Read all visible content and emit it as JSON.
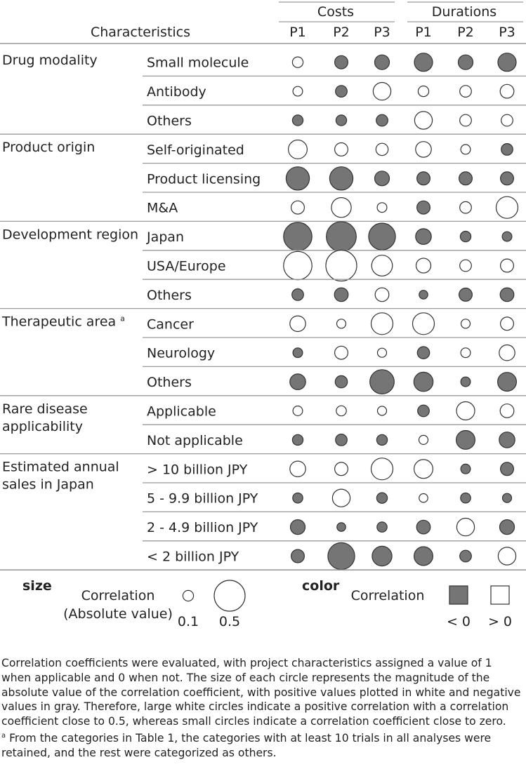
{
  "chart_data": {
    "type": "heatmap",
    "header": {
      "characteristics": "Characteristics",
      "costs": "Costs",
      "durations": "Durations",
      "columns": [
        "P1",
        "P2",
        "P3",
        "P1",
        "P2",
        "P3"
      ]
    },
    "groups": [
      {
        "label": "Drug modality",
        "label_lines": [
          "Drug modality"
        ],
        "rows": [
          {
            "label": "Small molecule",
            "values": [
              0.1,
              -0.15,
              -0.18,
              -0.25,
              -0.18,
              -0.25
            ]
          },
          {
            "label": "Antibody",
            "values": [
              0.08,
              -0.12,
              0.24,
              0.1,
              0.12,
              0.16
            ]
          },
          {
            "label": "Others",
            "values": [
              -0.1,
              -0.1,
              -0.12,
              0.24,
              0.12,
              0.12
            ]
          }
        ]
      },
      {
        "label": "Product origin",
        "label_lines": [
          "Product origin"
        ],
        "rows": [
          {
            "label": "Self-originated",
            "values": [
              0.26,
              0.15,
              0.13,
              0.2,
              0.08,
              -0.12
            ]
          },
          {
            "label": "Product licensing",
            "values": [
              -0.35,
              -0.35,
              -0.18,
              -0.15,
              -0.15,
              -0.15
            ]
          },
          {
            "label": "M&A",
            "values": [
              0.15,
              0.28,
              0.08,
              -0.15,
              0.12,
              0.32
            ]
          }
        ]
      },
      {
        "label": "Development region",
        "label_lines": [
          "Development region"
        ],
        "rows": [
          {
            "label": "Japan",
            "values": [
              -0.45,
              -0.48,
              -0.42,
              -0.2,
              -0.1,
              -0.08
            ]
          },
          {
            "label": "USA/Europe",
            "values": [
              0.45,
              0.5,
              0.3,
              0.18,
              0.12,
              0.15
            ]
          },
          {
            "label": "Others",
            "values": [
              -0.12,
              -0.16,
              0.16,
              -0.06,
              -0.15,
              -0.16
            ]
          }
        ]
      },
      {
        "label": "Therapeutic area",
        "label_lines": [
          "Therapeutic area"
        ],
        "footnote": "a",
        "rows": [
          {
            "label": "Cancer",
            "values": [
              0.2,
              0.07,
              0.32,
              0.32,
              0.07,
              0.15
            ]
          },
          {
            "label": "Neurology",
            "values": [
              -0.08,
              0.15,
              0.07,
              -0.13,
              0.08,
              0.2
            ]
          },
          {
            "label": "Others",
            "values": [
              -0.2,
              -0.13,
              -0.37,
              -0.27,
              -0.08,
              -0.26
            ]
          }
        ]
      },
      {
        "label": "Rare disease applicability",
        "label_lines": [
          "Rare disease",
          "applicability"
        ],
        "rows": [
          {
            "label": "Applicable",
            "values": [
              0.08,
              0.09,
              0.07,
              -0.12,
              0.25,
              0.16
            ]
          },
          {
            "label": "Not applicable",
            "values": [
              -0.1,
              -0.12,
              -0.1,
              0.07,
              -0.26,
              -0.2
            ]
          }
        ]
      },
      {
        "label": "Estimated annual sales in Japan",
        "label_lines": [
          "Estimated annual",
          "sales in Japan"
        ],
        "rows": [
          {
            "label": "> 10 billion JPY",
            "values": [
              0.2,
              0.15,
              0.32,
              0.26,
              -0.08,
              -0.15
            ]
          },
          {
            "label": "5 - 9.9 billion JPY",
            "values": [
              -0.09,
              0.24,
              -0.1,
              0.06,
              -0.09,
              -0.07
            ]
          },
          {
            "label": "2 - 4.9 billion JPY",
            "values": [
              -0.18,
              -0.06,
              -0.09,
              -0.16,
              0.24,
              -0.18
            ]
          },
          {
            "label": "< 2 billion JPY",
            "values": [
              -0.15,
              -0.42,
              -0.28,
              -0.26,
              -0.12,
              0.24
            ]
          }
        ]
      }
    ],
    "legend": {
      "size_title": "size",
      "size_label_line1": "Correlation",
      "size_label_line2": "(Absolute value)",
      "size_values": [
        0.1,
        0.5
      ],
      "size_tick_labels": [
        "0.1",
        "0.5"
      ],
      "color_title": "color",
      "color_label": "Correlation",
      "neg_label": "< 0",
      "pos_label": "> 0"
    },
    "colors": {
      "negative": "#757575",
      "positive": "#ffffff",
      "stroke": "#333333",
      "rule": "#9a9a9a"
    }
  },
  "caption": {
    "paragraph": "Correlation coefficients were evaluated, with project characteristics assigned a value of 1 when applicable and 0 when not. The size of each circle represents the magnitude of the absolute value of the correlation coefficient, with positive values plotted in white and negative values in gray. Therefore, large white circles indicate a positive correlation with a correlation coefficient close to 0.5, whereas small circles indicate a correlation coefficient close to zero.",
    "footnote_mark": "a",
    "footnote": " From the categories in Table 1, the categories with at least 10 trials in all analyses were retained, and the rest were categorized as others."
  }
}
